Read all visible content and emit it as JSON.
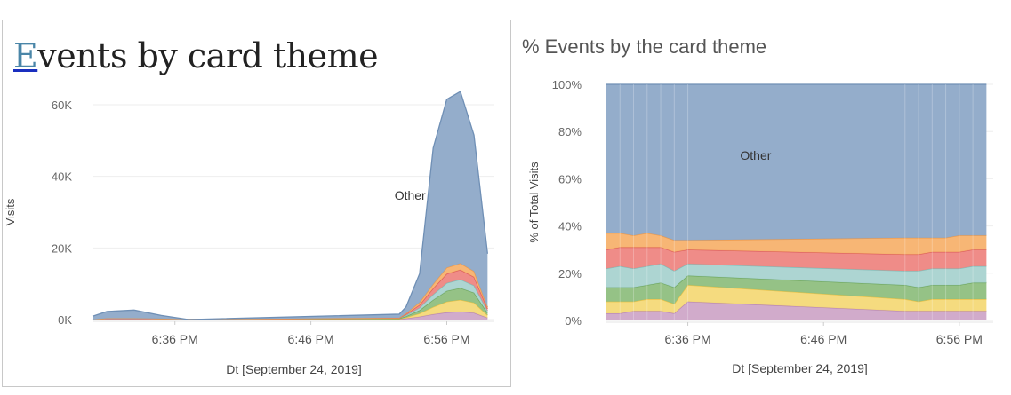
{
  "chart_data": [
    {
      "type": "area",
      "stacked": true,
      "title": "Events by card theme",
      "xlabel": "Dt [September 24, 2019]",
      "ylabel": "Visits",
      "x_ticks": [
        "6:36 PM",
        "6:46 PM",
        "6:56 PM"
      ],
      "x_tick_minutes": [
        36,
        46,
        56
      ],
      "x_minutes": [
        30,
        31,
        33,
        35,
        37,
        52.5,
        53,
        54,
        55,
        56,
        57,
        58,
        59
      ],
      "xlim": [
        30,
        59.5
      ],
      "y_ticks": [
        "0K",
        "20K",
        "40K",
        "60K"
      ],
      "y_tick_values": [
        0,
        20000,
        40000,
        60000
      ],
      "ylim": [
        0,
        60000
      ],
      "annotation": "Other",
      "colors": [
        "#cfa6c8",
        "#f4d978",
        "#8fbf7f",
        "#a9d3d0",
        "#ee8682",
        "#f7b26e",
        "#8ea9c8"
      ],
      "series": [
        {
          "values": [
            0,
            150,
            150,
            100,
            0,
            100,
            300,
            800,
            1500,
            2000,
            2200,
            1900,
            500
          ]
        },
        {
          "values": [
            0,
            200,
            200,
            150,
            0,
            100,
            300,
            900,
            2000,
            3000,
            3300,
            2800,
            700
          ]
        },
        {
          "values": [
            0,
            0,
            0,
            0,
            0,
            100,
            300,
            900,
            2000,
            3000,
            3300,
            2800,
            700
          ]
        },
        {
          "values": [
            0,
            0,
            0,
            0,
            0,
            100,
            300,
            700,
            1500,
            2200,
            2400,
            2000,
            500
          ]
        },
        {
          "values": [
            0,
            0,
            0,
            0,
            0,
            50,
            300,
            800,
            1700,
            2600,
            2700,
            2400,
            600
          ]
        },
        {
          "values": [
            0,
            0,
            0,
            0,
            0,
            50,
            200,
            700,
            1200,
            1700,
            1800,
            1600,
            400
          ]
        },
        {
          "values": [
            1000,
            1900,
            2300,
            900,
            0,
            1000,
            1800,
            8000,
            38000,
            47000,
            48000,
            38000,
            15000
          ]
        }
      ]
    },
    {
      "type": "area",
      "stacked": true,
      "percent": true,
      "title": "% Events by the card theme",
      "xlabel": "Dt [September 24, 2019]",
      "ylabel": "% of Total Visits",
      "x_ticks": [
        "6:36 PM",
        "6:46 PM",
        "6:56 PM"
      ],
      "x_tick_minutes": [
        36,
        46,
        56
      ],
      "x_minutes": [
        30,
        31,
        32,
        33,
        34,
        35,
        36,
        52,
        53,
        54,
        55,
        56,
        57,
        58
      ],
      "xlim": [
        30,
        58.5
      ],
      "y_ticks": [
        "0%",
        "20%",
        "40%",
        "60%",
        "80%",
        "100%"
      ],
      "y_tick_values": [
        0,
        20,
        40,
        60,
        80,
        100
      ],
      "ylim": [
        0,
        100
      ],
      "annotation": "Other",
      "colors": [
        "#cfa6c8",
        "#f4d978",
        "#8fbf7f",
        "#a9d3d0",
        "#ee8682",
        "#f7b26e",
        "#8ea9c8"
      ],
      "series": [
        {
          "values": [
            3,
            3,
            4,
            4,
            4,
            3,
            8,
            4,
            4,
            4,
            4,
            4,
            4,
            4
          ]
        },
        {
          "values": [
            5,
            5,
            4,
            5,
            5,
            4,
            7,
            5,
            4,
            5,
            5,
            5,
            5,
            5
          ]
        },
        {
          "values": [
            6,
            6,
            6,
            6,
            7,
            7,
            4,
            6,
            6,
            6,
            6,
            6,
            7,
            7
          ]
        },
        {
          "values": [
            8,
            9,
            8,
            8,
            8,
            7,
            5,
            6,
            7,
            7,
            7,
            7,
            7,
            7
          ]
        },
        {
          "values": [
            8,
            8,
            9,
            8,
            7,
            8,
            6,
            7,
            7,
            7,
            7,
            7,
            7,
            7
          ]
        },
        {
          "values": [
            7,
            6,
            5,
            6,
            5,
            5,
            4,
            7,
            7,
            6,
            6,
            7,
            6,
            6
          ]
        },
        {
          "values": [
            63,
            63,
            64,
            63,
            64,
            66,
            66,
            65,
            65,
            65,
            65,
            64,
            64,
            64
          ]
        }
      ]
    }
  ]
}
